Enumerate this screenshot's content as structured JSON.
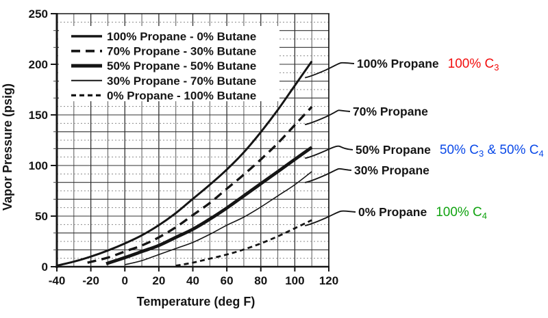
{
  "figure": {
    "background": "#ffffff",
    "ink_color": "#151515",
    "grid_solid_color": "#303030",
    "grid_dotted_color": "#8a8a8a"
  },
  "chart_data": {
    "type": "line",
    "title": "",
    "xlabel": "Temperature (deg F)",
    "ylabel": "Vapor Pressure (psig)",
    "xlim": [
      -40,
      120
    ],
    "ylim": [
      0,
      250
    ],
    "x_ticks": [
      -40,
      -20,
      0,
      20,
      40,
      60,
      80,
      100,
      120
    ],
    "y_ticks": [
      0,
      50,
      100,
      150,
      200,
      250
    ],
    "grid": {
      "vertical_line_every_degF": 10,
      "horizontal_solid_line_every_psig": 16.67,
      "horizontal_dotted_line_between": true
    },
    "legend_position": "top-left-inside",
    "series": [
      {
        "name": "100% Propane - 0% Butane",
        "line": "solid-medium",
        "points": [
          [
            -40,
            1
          ],
          [
            -30,
            5
          ],
          [
            -20,
            10
          ],
          [
            -10,
            16
          ],
          [
            0,
            23
          ],
          [
            10,
            31
          ],
          [
            20,
            41
          ],
          [
            30,
            53
          ],
          [
            40,
            67
          ],
          [
            50,
            81
          ],
          [
            60,
            96
          ],
          [
            70,
            113
          ],
          [
            80,
            133
          ],
          [
            90,
            155
          ],
          [
            100,
            179
          ],
          [
            110,
            203
          ]
        ]
      },
      {
        "name": "70% Propane - 30% Butane",
        "line": "dashed-thick",
        "points": [
          [
            -22,
            4
          ],
          [
            -10,
            9
          ],
          [
            0,
            15
          ],
          [
            10,
            21
          ],
          [
            20,
            29
          ],
          [
            30,
            39
          ],
          [
            40,
            51
          ],
          [
            50,
            63
          ],
          [
            60,
            77
          ],
          [
            70,
            91
          ],
          [
            80,
            106
          ],
          [
            90,
            122
          ],
          [
            100,
            140
          ],
          [
            110,
            158
          ]
        ]
      },
      {
        "name": "50% Propane - 50% Butane",
        "line": "solid-thick",
        "points": [
          [
            -11,
            3
          ],
          [
            0,
            9
          ],
          [
            10,
            15
          ],
          [
            20,
            21
          ],
          [
            30,
            29
          ],
          [
            40,
            37
          ],
          [
            50,
            47
          ],
          [
            60,
            58
          ],
          [
            70,
            70
          ],
          [
            80,
            82
          ],
          [
            90,
            94
          ],
          [
            100,
            106
          ],
          [
            110,
            118
          ]
        ]
      },
      {
        "name": "30% Propane - 70% Butane",
        "line": "solid-thin",
        "points": [
          [
            0,
            2
          ],
          [
            10,
            6
          ],
          [
            20,
            12
          ],
          [
            30,
            18
          ],
          [
            40,
            24
          ],
          [
            50,
            32
          ],
          [
            60,
            41
          ],
          [
            70,
            49
          ],
          [
            80,
            59
          ],
          [
            90,
            70
          ],
          [
            100,
            81
          ],
          [
            110,
            94
          ]
        ]
      },
      {
        "name": "0% Propane - 100% Butane",
        "line": "dashed-thin",
        "points": [
          [
            30,
            1
          ],
          [
            40,
            4
          ],
          [
            50,
            8
          ],
          [
            60,
            12
          ],
          [
            70,
            17
          ],
          [
            80,
            23
          ],
          [
            90,
            30
          ],
          [
            100,
            38
          ],
          [
            110,
            46
          ]
        ]
      }
    ],
    "callouts": [
      {
        "label": "100% Propane",
        "note_color": "#f20d0d",
        "note_parts": [
          [
            "100% C",
            false
          ],
          [
            "3",
            true
          ]
        ]
      },
      {
        "label": "70% Propane",
        "note_color": null,
        "note_parts": []
      },
      {
        "label": "50% Propane",
        "note_color": "#0a49e8",
        "note_parts": [
          [
            "50% C",
            false
          ],
          [
            "3",
            true
          ],
          [
            " & 50% C",
            false
          ],
          [
            "4",
            true
          ]
        ]
      },
      {
        "label": "30% Propane",
        "note_color": null,
        "note_parts": []
      },
      {
        "label": "0% Propane",
        "note_color": "#10a310",
        "note_parts": [
          [
            "100% C",
            false
          ],
          [
            "4",
            true
          ]
        ]
      }
    ]
  }
}
